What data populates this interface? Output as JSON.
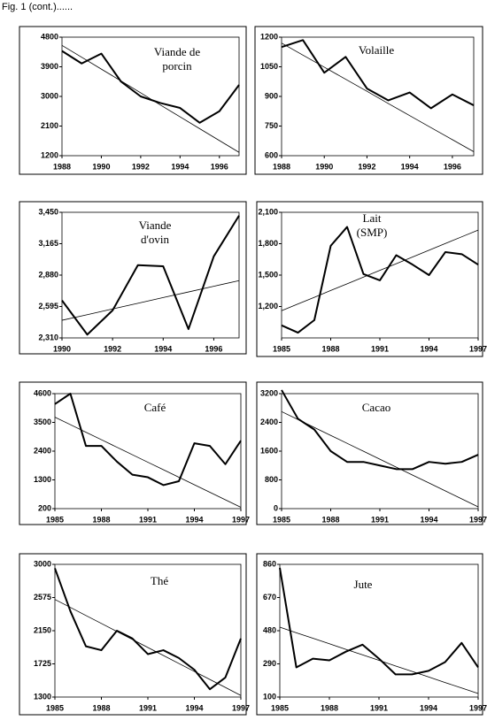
{
  "header": "Fig. 1 (cont.)......",
  "chart_data": [
    {
      "type": "line",
      "title": [
        "Viande de",
        "porcin"
      ],
      "x": [
        1988,
        1989,
        1990,
        1991,
        1992,
        1993,
        1994,
        1995,
        1996,
        1997
      ],
      "series": [
        {
          "color": "#000000",
          "values": [
            4380,
            4000,
            4300,
            3450,
            3000,
            2800,
            2650,
            2200,
            2550,
            3350
          ]
        },
        {
          "color": "#000000",
          "values": [
            4550,
            4190,
            3830,
            3470,
            3110,
            2740,
            2380,
            2020,
            1660,
            1300
          ]
        }
      ],
      "xlim": [
        1988,
        1997
      ],
      "xticks": [
        1988,
        1990,
        1992,
        1994,
        1996
      ],
      "ylim": [
        1200,
        4800
      ],
      "yticks": [
        1200,
        2100,
        3000,
        3900,
        4800
      ]
    },
    {
      "type": "line",
      "title": [
        "Volaille"
      ],
      "x": [
        1988,
        1989,
        1990,
        1991,
        1992,
        1993,
        1994,
        1995,
        1996,
        1997
      ],
      "series": [
        {
          "color": "#000000",
          "values": [
            1150,
            1185,
            1020,
            1100,
            940,
            880,
            920,
            840,
            910,
            855
          ]
        },
        {
          "color": "#000000",
          "values": [
            1170,
            1109,
            1048,
            987,
            926,
            864,
            803,
            742,
            681,
            620
          ]
        }
      ],
      "xlim": [
        1988,
        1997
      ],
      "xticks": [
        1988,
        1990,
        1992,
        1994,
        1996
      ],
      "ylim": [
        600,
        1200
      ],
      "yticks": [
        600,
        750,
        900,
        1050,
        1200
      ]
    },
    {
      "type": "line",
      "title": [
        "Viande",
        "d'ovin"
      ],
      "x": [
        1990,
        1991,
        1992,
        1993,
        1994,
        1995,
        1996,
        1997
      ],
      "series": [
        {
          "color": "#000000",
          "values": [
            2650,
            2340,
            2560,
            2970,
            2960,
            2390,
            3050,
            3420
          ]
        },
        {
          "color": "#000000",
          "values": [
            2470,
            2521,
            2573,
            2624,
            2676,
            2727,
            2779,
            2830
          ]
        }
      ],
      "xlim": [
        1990,
        1997
      ],
      "xticks": [
        1990,
        1992,
        1994,
        1996
      ],
      "ylim": [
        2310,
        3450
      ],
      "yticks": [
        {
          "value": 2310,
          "label": "2,310"
        },
        {
          "value": 2595,
          "label": "2,595"
        },
        {
          "value": 2880,
          "label": "2,880"
        },
        {
          "value": 3165,
          "label": "3,165"
        },
        {
          "value": 3450,
          "label": "3,450"
        }
      ]
    },
    {
      "type": "line",
      "title": [
        "Lait",
        "(SMP)"
      ],
      "x": [
        1985,
        1986,
        1987,
        1988,
        1989,
        1990,
        1991,
        1992,
        1993,
        1994,
        1995,
        1996,
        1997
      ],
      "series": [
        {
          "color": "#000000",
          "values": [
            1020,
            950,
            1070,
            1780,
            1960,
            1510,
            1450,
            1690,
            1600,
            1500,
            1720,
            1700,
            1600
          ]
        },
        {
          "color": "#000000",
          "values": [
            1160,
            1224,
            1288,
            1353,
            1417,
            1481,
            1545,
            1609,
            1673,
            1738,
            1802,
            1866,
            1930
          ]
        }
      ],
      "xlim": [
        1985,
        1997
      ],
      "xticks": [
        1985,
        1988,
        1991,
        1994,
        1997
      ],
      "ylim": [
        900,
        2100
      ],
      "yticks": [
        {
          "value": 1200,
          "label": "1,200"
        },
        {
          "value": 1500,
          "label": "1,500"
        },
        {
          "value": 1800,
          "label": "1,800"
        },
        {
          "value": 2100,
          "label": "2,100"
        }
      ]
    },
    {
      "type": "line",
      "title": [
        "Café"
      ],
      "x": [
        1985,
        1986,
        1987,
        1988,
        1989,
        1990,
        1991,
        1992,
        1993,
        1994,
        1995,
        1996,
        1997
      ],
      "series": [
        {
          "color": "#000000",
          "values": [
            4200,
            4600,
            2600,
            2600,
            2000,
            1500,
            1400,
            1100,
            1250,
            2700,
            2600,
            1900,
            2800
          ]
        },
        {
          "color": "#000000",
          "values": [
            3700,
            3413,
            3125,
            2838,
            2550,
            2263,
            1975,
            1688,
            1400,
            1113,
            825,
            538,
            250
          ]
        }
      ],
      "xlim": [
        1985,
        1997
      ],
      "xticks": [
        1985,
        1988,
        1991,
        1994,
        1997
      ],
      "ylim": [
        200,
        4600
      ],
      "yticks": [
        200,
        1300,
        2400,
        3500,
        4600
      ]
    },
    {
      "type": "line",
      "title": [
        "Cacao"
      ],
      "x": [
        1985,
        1986,
        1987,
        1988,
        1989,
        1990,
        1991,
        1992,
        1993,
        1994,
        1995,
        1996,
        1997
      ],
      "series": [
        {
          "color": "#000000",
          "values": [
            3300,
            2500,
            2200,
            1600,
            1300,
            1300,
            1200,
            1100,
            1100,
            1300,
            1250,
            1300,
            1500
          ]
        },
        {
          "color": "#000000",
          "values": [
            2700,
            2479,
            2258,
            2038,
            1817,
            1596,
            1375,
            1154,
            933,
            713,
            492,
            271,
            50
          ]
        }
      ],
      "xlim": [
        1985,
        1997
      ],
      "xticks": [
        1985,
        1988,
        1991,
        1994,
        1997
      ],
      "ylim": [
        0,
        3200
      ],
      "yticks": [
        0,
        800,
        1600,
        2400,
        3200
      ]
    },
    {
      "type": "line",
      "title": [
        "Thé"
      ],
      "x": [
        1985,
        1986,
        1987,
        1988,
        1989,
        1990,
        1991,
        1992,
        1993,
        1994,
        1995,
        1996,
        1997
      ],
      "series": [
        {
          "color": "#000000",
          "values": [
            2950,
            2400,
            1950,
            1900,
            2150,
            2050,
            1850,
            1900,
            1800,
            1650,
            1400,
            1550,
            2050
          ]
        },
        {
          "color": "#000000",
          "values": [
            2550,
            2448,
            2345,
            2243,
            2140,
            2038,
            1935,
            1833,
            1730,
            1628,
            1525,
            1423,
            1320
          ]
        }
      ],
      "xlim": [
        1985,
        1997
      ],
      "xticks": [
        1985,
        1988,
        1991,
        1994,
        1997
      ],
      "ylim": [
        1300,
        3000
      ],
      "yticks": [
        1300,
        1725,
        2150,
        2575,
        3000
      ]
    },
    {
      "type": "line",
      "title": [
        "Jute"
      ],
      "x": [
        1985,
        1986,
        1987,
        1988,
        1989,
        1990,
        1991,
        1992,
        1993,
        1994,
        1995,
        1996,
        1997
      ],
      "series": [
        {
          "color": "#000000",
          "values": [
            840,
            270,
            320,
            310,
            360,
            400,
            320,
            230,
            230,
            250,
            300,
            410,
            270
          ]
        },
        {
          "color": "#000000",
          "values": [
            500,
            468,
            437,
            405,
            373,
            342,
            310,
            278,
            247,
            215,
            183,
            152,
            120
          ]
        }
      ],
      "xlim": [
        1985,
        1997
      ],
      "xticks": [
        1985,
        1988,
        1991,
        1994,
        1997
      ],
      "ylim": [
        100,
        860
      ],
      "yticks": [
        100,
        290,
        480,
        670,
        860
      ]
    }
  ]
}
